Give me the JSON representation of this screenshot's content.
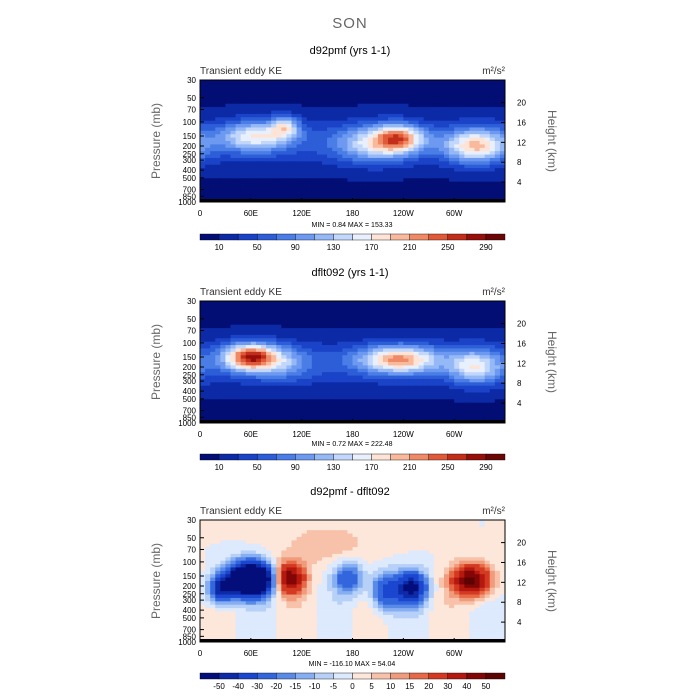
{
  "page_title": "SON",
  "panels": [
    {
      "title": "d92pmf (yrs 1-1)",
      "left_label": "Transient eddy KE",
      "units": "m²/s²",
      "minmax": "MIN =     0.84   MAX =  153.33",
      "palette": "seq"
    },
    {
      "title": "dflt092 (yrs 1-1)",
      "left_label": "Transient eddy KE",
      "units": "m²/s²",
      "minmax": "MIN =     0.72   MAX =  222.48",
      "palette": "seq"
    },
    {
      "title": "d92pmf - dflt092",
      "left_label": "Transient eddy KE",
      "units": "m²/s²",
      "minmax": "MIN = -116.10   MAX =   54.04",
      "palette": "div"
    }
  ],
  "axes": {
    "ylabel": "Pressure (mb)",
    "y2label": "Height (km)",
    "pressure_ticks": [
      "30",
      "50",
      "70",
      "100",
      "150",
      "200",
      "250",
      "300",
      "400",
      "500",
      "700",
      "850",
      "1000"
    ],
    "height_ticks": [
      "20",
      "16",
      "12",
      "8",
      "4"
    ],
    "lon_ticks": [
      "0",
      "60E",
      "120E",
      "180",
      "120W",
      "60W"
    ]
  },
  "colorbars": {
    "seq": [
      "10",
      "50",
      "90",
      "130",
      "170",
      "210",
      "250",
      "290"
    ],
    "div": [
      "-50",
      "-40",
      "-30",
      "-20",
      "-15",
      "-10",
      "-5",
      "0",
      "5",
      "10",
      "15",
      "20",
      "30",
      "40",
      "50"
    ]
  },
  "colors": {
    "seq": [
      "#030e75",
      "#0c2aa6",
      "#1a43c8",
      "#2d5ed8",
      "#4a7ee6",
      "#6d9af0",
      "#95b8f6",
      "#c2d7fb",
      "#e8f0fd",
      "#fde4d6",
      "#f8b99c",
      "#ef8a66",
      "#e05a3a",
      "#c22e1a",
      "#960f0b",
      "#6b0606"
    ],
    "div": [
      "#040e7a",
      "#0d2aa8",
      "#1b46cf",
      "#3366dd",
      "#5a8ae8",
      "#86aef2",
      "#b7d0f8",
      "#dde9fc",
      "#fde6da",
      "#f8c2aa",
      "#f09b7c",
      "#e66a47",
      "#d43a22",
      "#b4180e",
      "#820606",
      "#5c0303"
    ]
  },
  "chart_data": [
    {
      "type": "heatmap",
      "title": "d92pmf (yrs 1-1)",
      "xlabel": "",
      "ylabel": "Pressure (mb)",
      "y2label": "Height (km)",
      "x_ticks": [
        "0",
        "60E",
        "120E",
        "180",
        "120W",
        "60W"
      ],
      "min": 0.84,
      "max": 153.33,
      "levels": [
        10,
        30,
        50,
        70,
        90,
        110,
        130,
        150,
        170,
        190,
        210,
        230,
        250,
        270,
        290
      ],
      "features": [
        {
          "lon": 65,
          "p": 150,
          "peak": 125,
          "dlon": 28,
          "dlogp": 0.13
        },
        {
          "lon": 100,
          "p": 115,
          "peak": 110,
          "dlon": 12,
          "dlogp": 0.1
        },
        {
          "lon": 205,
          "p": 190,
          "peak": 105,
          "dlon": 30,
          "dlogp": 0.16
        },
        {
          "lon": 235,
          "p": 160,
          "peak": 153,
          "dlon": 20,
          "dlogp": 0.12
        },
        {
          "lon": 325,
          "p": 200,
          "peak": 150,
          "dlon": 25,
          "dlogp": 0.15
        }
      ]
    },
    {
      "type": "heatmap",
      "title": "dflt092 (yrs 1-1)",
      "xlabel": "",
      "ylabel": "Pressure (mb)",
      "y2label": "Height (km)",
      "x_ticks": [
        "0",
        "60E",
        "120E",
        "180",
        "120W",
        "60W"
      ],
      "min": 0.72,
      "max": 222.48,
      "levels": [
        10,
        30,
        50,
        70,
        90,
        110,
        130,
        150,
        170,
        190,
        210,
        230,
        250,
        270,
        290
      ],
      "features": [
        {
          "lon": 60,
          "p": 150,
          "peak": 222,
          "dlon": 22,
          "dlogp": 0.12
        },
        {
          "lon": 100,
          "p": 180,
          "peak": 60,
          "dlon": 22,
          "dlogp": 0.15
        },
        {
          "lon": 235,
          "p": 160,
          "peak": 170,
          "dlon": 32,
          "dlogp": 0.12
        },
        {
          "lon": 325,
          "p": 200,
          "peak": 120,
          "dlon": 22,
          "dlogp": 0.15
        }
      ]
    },
    {
      "type": "heatmap",
      "title": "d92pmf - dflt092",
      "xlabel": "",
      "ylabel": "Pressure (mb)",
      "y2label": "Height (km)",
      "x_ticks": [
        "0",
        "60E",
        "120E",
        "180",
        "120W",
        "60W"
      ],
      "min": -116.1,
      "max": 54.04,
      "levels": [
        -50,
        -40,
        -30,
        -20,
        -15,
        -10,
        -5,
        0,
        5,
        10,
        15,
        20,
        30,
        40,
        50
      ],
      "features": [
        {
          "lon": 60,
          "p": 165,
          "peak": -116,
          "dlon": 18,
          "dlogp": 0.14
        },
        {
          "lon": 25,
          "p": 220,
          "peak": -45,
          "dlon": 10,
          "dlogp": 0.12
        },
        {
          "lon": 105,
          "p": 160,
          "peak": 50,
          "dlon": 13,
          "dlogp": 0.14
        },
        {
          "lon": 175,
          "p": 160,
          "peak": -30,
          "dlon": 12,
          "dlogp": 0.14
        },
        {
          "lon": 220,
          "p": 230,
          "peak": -35,
          "dlon": 12,
          "dlogp": 0.16
        },
        {
          "lon": 250,
          "p": 210,
          "peak": -55,
          "dlon": 12,
          "dlogp": 0.14
        },
        {
          "lon": 320,
          "p": 170,
          "peak": 54,
          "dlon": 16,
          "dlogp": 0.14
        },
        {
          "lon": 150,
          "p": 60,
          "peak": 8,
          "dlon": 40,
          "dlogp": 0.2
        }
      ]
    }
  ]
}
